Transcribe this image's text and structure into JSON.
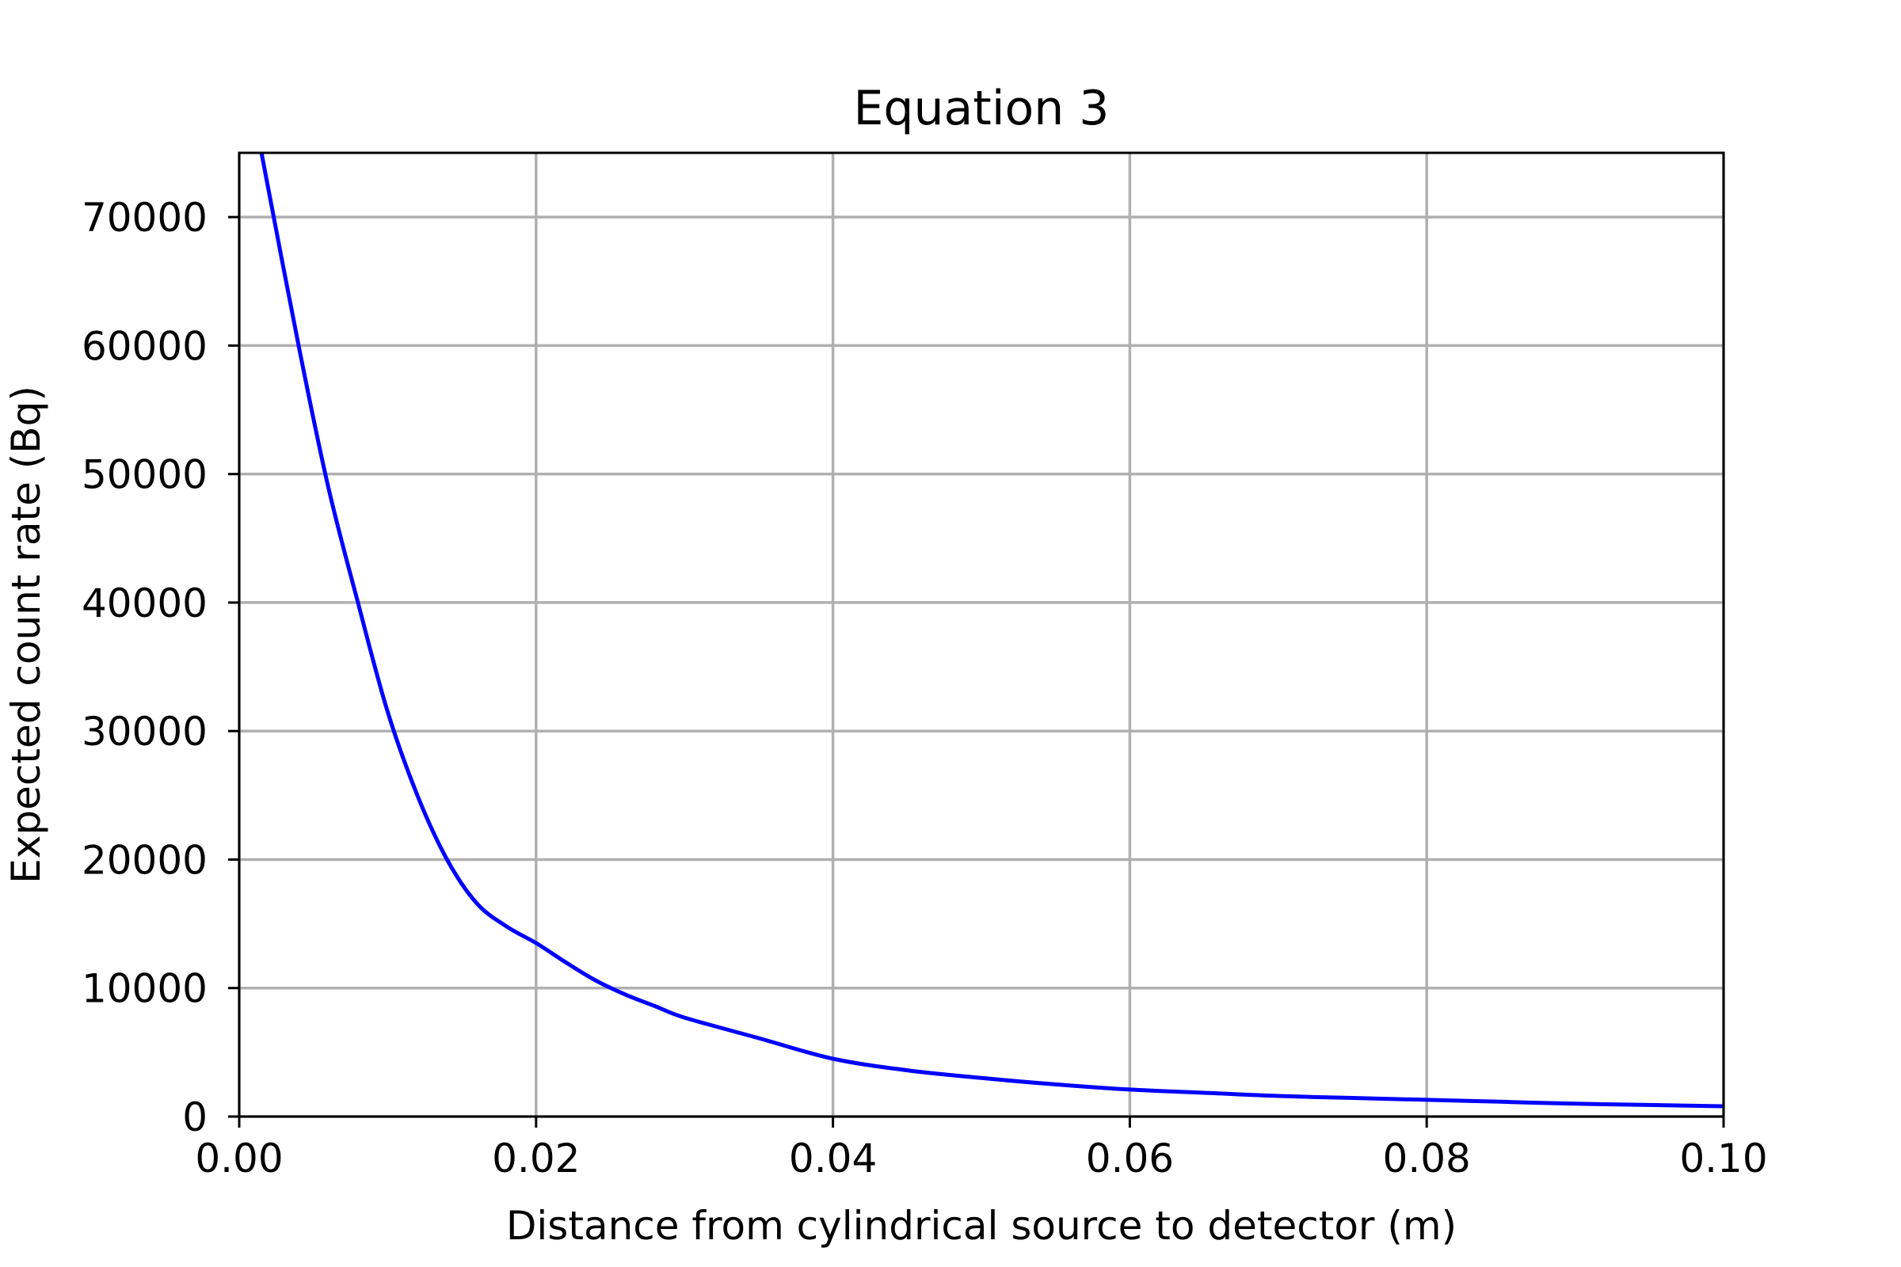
{
  "chart_data": {
    "type": "line",
    "title": "Equation 3",
    "xlabel": "Distance from cylindrical source to detector (m)",
    "ylabel": "Expected count rate (Bq)",
    "xlim": [
      0.0,
      0.1
    ],
    "ylim": [
      0,
      75000
    ],
    "x_ticks": [
      0.0,
      0.02,
      0.04,
      0.06,
      0.08,
      0.1
    ],
    "x_tick_labels": [
      "0.00",
      "0.02",
      "0.04",
      "0.06",
      "0.08",
      "0.10"
    ],
    "y_ticks": [
      0,
      10000,
      20000,
      30000,
      40000,
      50000,
      60000,
      70000
    ],
    "y_tick_labels": [
      "0",
      "10000",
      "20000",
      "30000",
      "40000",
      "50000",
      "60000",
      "70000"
    ],
    "grid": true,
    "legend": "none",
    "colors": {
      "series": "#0000ff",
      "grid": "#b0b0b0",
      "frame": "#000000"
    },
    "series": [
      {
        "x": [
          0.0015,
          0.004,
          0.006,
          0.008,
          0.01,
          0.012,
          0.014,
          0.016,
          0.018,
          0.02,
          0.022,
          0.024,
          0.026,
          0.028,
          0.03,
          0.035,
          0.04,
          0.045,
          0.05,
          0.055,
          0.06,
          0.065,
          0.07,
          0.075,
          0.08,
          0.085,
          0.09,
          0.095,
          0.1
        ],
        "y": [
          75000,
          60000,
          49000,
          40000,
          31500,
          25000,
          20000,
          16600,
          14800,
          13500,
          12000,
          10600,
          9500,
          8600,
          7700,
          6100,
          4500,
          3600,
          3000,
          2500,
          2100,
          1850,
          1600,
          1450,
          1300,
          1150,
          1000,
          900,
          800
        ]
      }
    ]
  }
}
